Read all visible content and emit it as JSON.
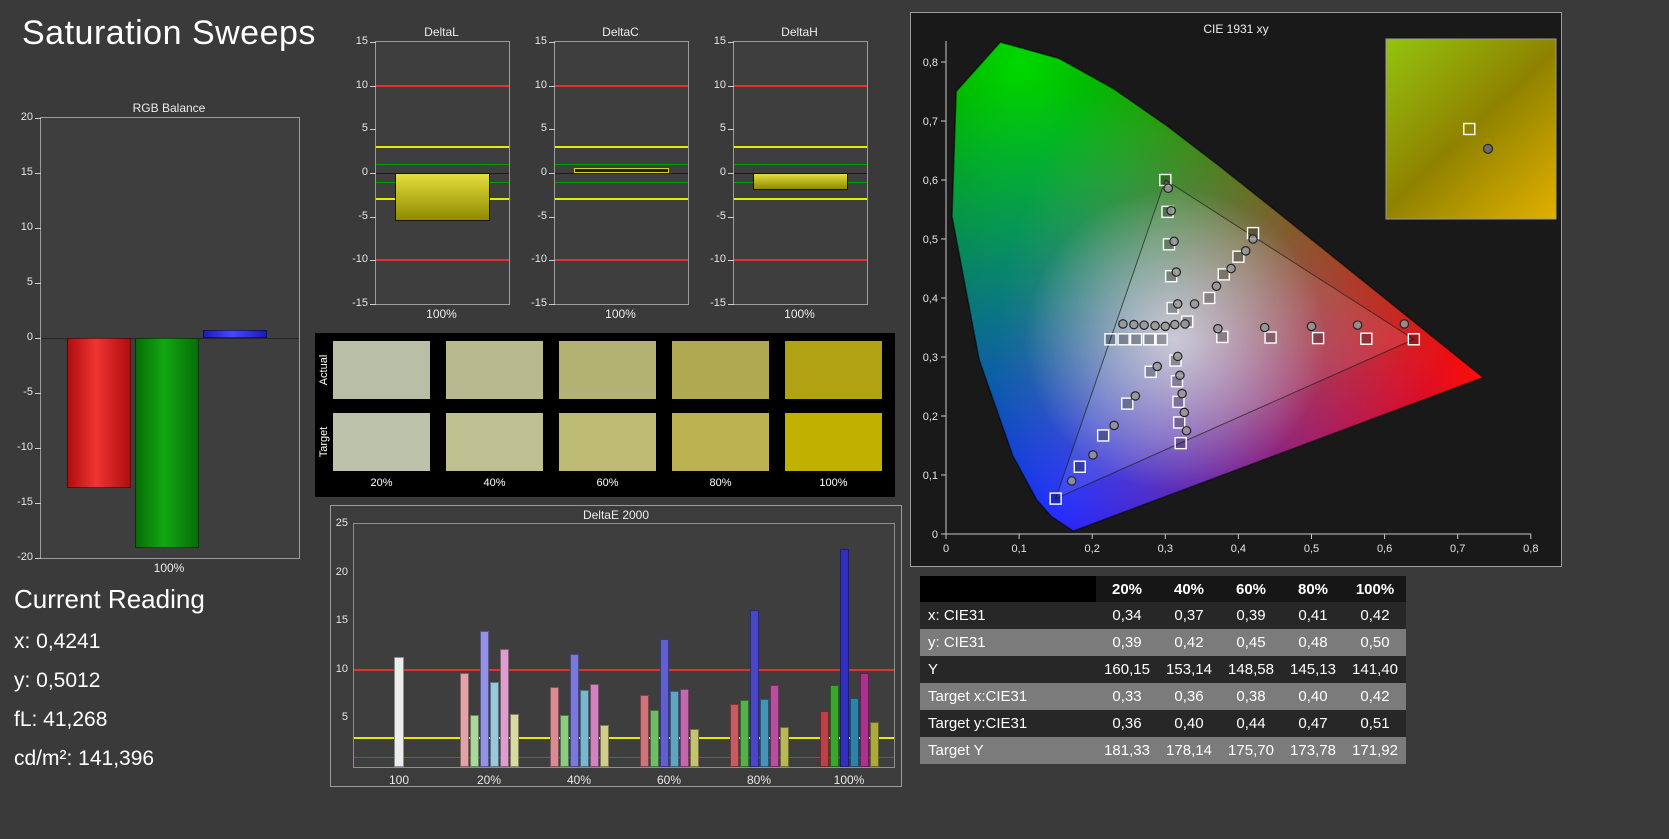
{
  "page": {
    "title": "Saturation Sweeps",
    "bg": "#3a3a3a"
  },
  "ref_colors": {
    "red": "#e03232",
    "yellow": "#eaea00",
    "green": "#00a000"
  },
  "current_reading": {
    "title": "Current Reading",
    "x": "x: 0,4241",
    "y": "y: 0,5012",
    "fl": "fL: 41,268",
    "cdm2": "cd/m²: 141,396"
  },
  "swatches": {
    "labels": [
      "20%",
      "40%",
      "60%",
      "80%",
      "100%"
    ],
    "rows": [
      {
        "label": "Actual",
        "colors": [
          "#b8bfa6",
          "#b7ba8e",
          "#b4b273",
          "#b1a952",
          "#b0a213"
        ]
      },
      {
        "label": "Target",
        "colors": [
          "#bdc3aa",
          "#bec092",
          "#bebb74",
          "#bcb252",
          "#c0b100"
        ]
      }
    ]
  },
  "table": {
    "columns": [
      "20%",
      "40%",
      "60%",
      "80%",
      "100%"
    ],
    "rows": [
      {
        "label": "x: CIE31",
        "values": [
          "0,34",
          "0,37",
          "0,39",
          "0,41",
          "0,42"
        ]
      },
      {
        "label": "y: CIE31",
        "values": [
          "0,39",
          "0,42",
          "0,45",
          "0,48",
          "0,50"
        ]
      },
      {
        "label": "Y",
        "values": [
          "160,15",
          "153,14",
          "148,58",
          "145,13",
          "141,40"
        ]
      },
      {
        "label": "Target x:CIE31",
        "values": [
          "0,33",
          "0,36",
          "0,38",
          "0,40",
          "0,42"
        ]
      },
      {
        "label": "Target y:CIE31",
        "values": [
          "0,36",
          "0,40",
          "0,44",
          "0,47",
          "0,51"
        ]
      },
      {
        "label": "Target Y",
        "values": [
          "181,33",
          "178,14",
          "175,70",
          "173,78",
          "171,92"
        ]
      }
    ]
  },
  "chart_data": [
    {
      "id": "rgb_balance",
      "type": "bar",
      "title": "RGB Balance",
      "xlabel": "100%",
      "ylim": [
        -20,
        20
      ],
      "yticks": [
        "20",
        "15",
        "10",
        "5",
        "0",
        "-5",
        "-10",
        "-15",
        "-20"
      ],
      "series": [
        {
          "name": "Red",
          "value": -13.6,
          "color": "#b00e0e",
          "color2": "#f03434"
        },
        {
          "name": "Green",
          "value": -19.1,
          "color": "#076d07",
          "color2": "#12a812"
        },
        {
          "name": "Blue",
          "value": 0.7,
          "color": "#1b1bb4",
          "color2": "#4747ff"
        }
      ]
    },
    {
      "id": "deltaL",
      "type": "bar",
      "title": "DeltaL",
      "xlabel": "100%",
      "ylim": [
        -15,
        15
      ],
      "yticks": [
        "15",
        "10",
        "5",
        "0",
        "-5",
        "-10",
        "-15"
      ],
      "ref_lines": {
        "red": 10,
        "yellow": 3,
        "green": 1
      },
      "value": -5.5,
      "bar_color": "#e4de3c",
      "bar_color2": "#8f8a00",
      "bar_border": "#141414"
    },
    {
      "id": "deltaC",
      "type": "bar",
      "title": "DeltaC",
      "xlabel": "100%",
      "ylim": [
        -15,
        15
      ],
      "yticks": [
        "15",
        "10",
        "5",
        "0",
        "-5",
        "-10",
        "-15"
      ],
      "ref_lines": {
        "red": 10,
        "yellow": 3,
        "green": 1
      },
      "value": 0.3,
      "bar_color": "#1f1f1f",
      "bar_color2": "#1f1f1f",
      "bar_border": "#d6d02a"
    },
    {
      "id": "deltaH",
      "type": "bar",
      "title": "DeltaH",
      "xlabel": "100%",
      "ylim": [
        -15,
        15
      ],
      "yticks": [
        "15",
        "10",
        "5",
        "0",
        "-5",
        "-10",
        "-15"
      ],
      "ref_lines": {
        "red": 10,
        "yellow": 3,
        "green": 1
      },
      "value": -2.0,
      "bar_color": "#e4de3c",
      "bar_color2": "#8f8a00",
      "bar_border": "#141414"
    },
    {
      "id": "deltae2000",
      "type": "bar",
      "title": "DeltaE 2000",
      "ylim": [
        0,
        25
      ],
      "yticks": [
        "25",
        "20",
        "15",
        "10",
        "5"
      ],
      "ref_lines": {
        "red": 10,
        "yellow": 3,
        "green": 1
      },
      "groups": [
        {
          "label": "100",
          "bars": [
            {
              "value": 11.3,
              "color": "#ededed"
            }
          ]
        },
        {
          "label": "20%",
          "bars": [
            {
              "value": 9.7,
              "color": "#e2a3a8"
            },
            {
              "value": 5.3,
              "color": "#a9d89b"
            },
            {
              "value": 14.0,
              "color": "#9492e4"
            },
            {
              "value": 8.7,
              "color": "#97c9da"
            },
            {
              "value": 12.1,
              "color": "#dd9ecb"
            },
            {
              "value": 5.5,
              "color": "#d9d9a2"
            }
          ]
        },
        {
          "label": "40%",
          "bars": [
            {
              "value": 8.2,
              "color": "#d98b92"
            },
            {
              "value": 5.4,
              "color": "#8bcb82"
            },
            {
              "value": 11.6,
              "color": "#7a78da"
            },
            {
              "value": 7.9,
              "color": "#7ab7cf"
            },
            {
              "value": 8.5,
              "color": "#d083bd"
            },
            {
              "value": 4.3,
              "color": "#cfcf8a"
            }
          ]
        },
        {
          "label": "60%",
          "bars": [
            {
              "value": 7.4,
              "color": "#cf737b"
            },
            {
              "value": 5.9,
              "color": "#6fbd66"
            },
            {
              "value": 13.2,
              "color": "#615fd0"
            },
            {
              "value": 7.8,
              "color": "#5fa5c3"
            },
            {
              "value": 8.0,
              "color": "#c368ae"
            },
            {
              "value": 3.9,
              "color": "#c4c470"
            }
          ]
        },
        {
          "label": "80%",
          "bars": [
            {
              "value": 6.5,
              "color": "#c55b64"
            },
            {
              "value": 6.9,
              "color": "#55b14b"
            },
            {
              "value": 16.2,
              "color": "#4a47c7"
            },
            {
              "value": 7.0,
              "color": "#4793b8"
            },
            {
              "value": 8.4,
              "color": "#b74e9e"
            },
            {
              "value": 4.1,
              "color": "#b8b857"
            }
          ]
        },
        {
          "label": "100%",
          "bars": [
            {
              "value": 5.8,
              "color": "#bb4149"
            },
            {
              "value": 8.4,
              "color": "#3aa52f"
            },
            {
              "value": 22.4,
              "color": "#312fbe"
            },
            {
              "value": 7.1,
              "color": "#2f81a8"
            },
            {
              "value": 9.7,
              "color": "#a9338d"
            },
            {
              "value": 4.6,
              "color": "#abab3c"
            }
          ]
        }
      ]
    },
    {
      "id": "cie1931",
      "type": "scatter",
      "title": "CIE 1931 xy",
      "xlim": [
        0,
        0.8
      ],
      "ylim": [
        0,
        0.8
      ],
      "xticks": [
        "0",
        "0,1",
        "0,2",
        "0,3",
        "0,4",
        "0,5",
        "0,6",
        "0,7",
        "0,8"
      ],
      "yticks": [
        "0",
        "0,1",
        "0,2",
        "0,3",
        "0,4",
        "0,5",
        "0,6",
        "0,7",
        "0,8"
      ],
      "gamut_triangle": [
        [
          0.64,
          0.33
        ],
        [
          0.3,
          0.6
        ],
        [
          0.15,
          0.06
        ]
      ],
      "target_points": [
        [
          0.378,
          0.334
        ],
        [
          0.444,
          0.333
        ],
        [
          0.509,
          0.332
        ],
        [
          0.575,
          0.331
        ],
        [
          0.64,
          0.33
        ],
        [
          0.31,
          0.383
        ],
        [
          0.308,
          0.437
        ],
        [
          0.305,
          0.491
        ],
        [
          0.303,
          0.546
        ],
        [
          0.3,
          0.6
        ],
        [
          0.28,
          0.275
        ],
        [
          0.248,
          0.221
        ],
        [
          0.215,
          0.167
        ],
        [
          0.183,
          0.114
        ],
        [
          0.15,
          0.06
        ],
        [
          0.295,
          0.33
        ],
        [
          0.278,
          0.33
        ],
        [
          0.26,
          0.33
        ],
        [
          0.243,
          0.33
        ],
        [
          0.225,
          0.33
        ],
        [
          0.314,
          0.294
        ],
        [
          0.316,
          0.259
        ],
        [
          0.318,
          0.224
        ],
        [
          0.319,
          0.189
        ],
        [
          0.321,
          0.154
        ],
        [
          0.33,
          0.36
        ],
        [
          0.36,
          0.4
        ],
        [
          0.38,
          0.44
        ],
        [
          0.4,
          0.47
        ],
        [
          0.42,
          0.51
        ]
      ],
      "measured_points": [
        [
          0.372,
          0.348
        ],
        [
          0.436,
          0.35
        ],
        [
          0.5,
          0.352
        ],
        [
          0.563,
          0.354
        ],
        [
          0.627,
          0.356
        ],
        [
          0.317,
          0.39
        ],
        [
          0.315,
          0.444
        ],
        [
          0.312,
          0.496
        ],
        [
          0.308,
          0.548
        ],
        [
          0.304,
          0.586
        ],
        [
          0.289,
          0.284
        ],
        [
          0.259,
          0.234
        ],
        [
          0.23,
          0.184
        ],
        [
          0.201,
          0.134
        ],
        [
          0.172,
          0.09
        ],
        [
          0.3,
          0.352
        ],
        [
          0.286,
          0.353
        ],
        [
          0.271,
          0.354
        ],
        [
          0.257,
          0.355
        ],
        [
          0.242,
          0.356
        ],
        [
          0.313,
          0.355
        ],
        [
          0.327,
          0.356
        ],
        [
          0.317,
          0.301
        ],
        [
          0.32,
          0.269
        ],
        [
          0.323,
          0.238
        ],
        [
          0.326,
          0.206
        ],
        [
          0.329,
          0.175
        ],
        [
          0.34,
          0.39
        ],
        [
          0.37,
          0.42
        ],
        [
          0.39,
          0.45
        ],
        [
          0.41,
          0.48
        ],
        [
          0.42,
          0.5
        ]
      ],
      "inset": {
        "square": [
          0.49,
          0.5
        ],
        "circle": [
          0.6,
          0.61
        ]
      }
    }
  ]
}
